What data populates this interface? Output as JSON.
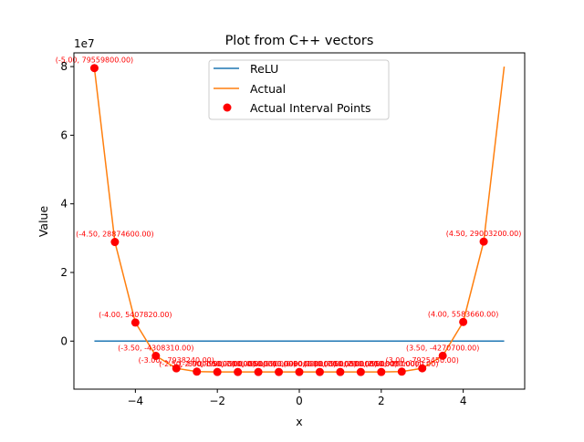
{
  "chart_data": {
    "type": "line",
    "title": "Plot from C++ vectors",
    "xlabel": "x",
    "ylabel": "Value",
    "offset_label": "1e7",
    "xlim": [
      -5.5,
      5.5
    ],
    "ylim": [
      -14000000,
      84000000
    ],
    "x_ticks": [
      -4,
      -2,
      0,
      2,
      4
    ],
    "x_tick_labels": [
      "−4",
      "−2",
      "0",
      "2",
      "4"
    ],
    "y_ticks": [
      0,
      20000000,
      40000000,
      60000000,
      80000000
    ],
    "y_tick_labels": [
      "0",
      "2",
      "4",
      "6",
      "8"
    ],
    "grid": false,
    "legend_position": "upper center",
    "legend": [
      "ReLU",
      "Actual",
      "Actual Interval Points"
    ],
    "colors": {
      "relu": "#1f77b4",
      "actual": "#ff7f0e",
      "points": "#ff0000",
      "annotation": "#ff0000"
    },
    "series": [
      {
        "name": "ReLU",
        "x": [
          -5,
          5
        ],
        "y": [
          0,
          0
        ]
      },
      {
        "name": "Actual",
        "x": [
          -5,
          -4.5,
          -4,
          -3.5,
          -3,
          -2.5,
          -2,
          -1.5,
          -1,
          -0.5,
          0,
          0.5,
          1,
          1.5,
          2,
          2.5,
          3,
          3.5,
          4,
          4.5,
          5
        ],
        "y": [
          79559800,
          28874600,
          5407820,
          -4308310,
          -7938240,
          -8900000,
          -9000000,
          -9000000,
          -9000000,
          -9000000,
          -9000000,
          -9000000,
          -9000000,
          -9000000,
          -9000000,
          -8900000,
          -7925450,
          -4270700,
          5583660,
          29003200,
          80000000
        ]
      },
      {
        "name": "Actual Interval Points",
        "x": [
          -5,
          -4.5,
          -4,
          -3.5,
          -3,
          -2.5,
          -2,
          -1.5,
          -1,
          -0.5,
          0,
          0.5,
          1,
          1.5,
          2,
          2.5,
          3,
          3.5,
          4,
          4.5
        ],
        "y": [
          79559800,
          28874600,
          5407820,
          -4308310,
          -7938240,
          -8900000,
          -9000000,
          -9000000,
          -9000000,
          -9000000,
          -9000000,
          -9000000,
          -9000000,
          -9000000,
          -9000000,
          -8900000,
          -7925450,
          -4270700,
          5583660,
          29003200
        ]
      }
    ],
    "annotations": [
      {
        "x": -5,
        "y": 79559800,
        "text": "(-5.00, 79559800.00)"
      },
      {
        "x": -4.5,
        "y": 28874600,
        "text": "(-4.50, 28874600.00)"
      },
      {
        "x": -4,
        "y": 5407820,
        "text": "(-4.00, 5407820.00)"
      },
      {
        "x": -3.5,
        "y": -4308310,
        "text": "(-3.50, -4308310.00)"
      },
      {
        "x": -3,
        "y": -7938240,
        "text": "(-3.00, -7938240.00)"
      },
      {
        "x": -2.5,
        "y": -8900000,
        "text": "(-2.50, -8900000.00)"
      },
      {
        "x": -2,
        "y": -9000000,
        "text": "(-2.00, -9000000.00)"
      },
      {
        "x": -1.5,
        "y": -9000000,
        "text": "(-1.50, -9000000.00)"
      },
      {
        "x": -1,
        "y": -9000000,
        "text": "(-1.00, -9000000.00)"
      },
      {
        "x": -0.5,
        "y": -9000000,
        "text": "(-0.50, -9000000.00)"
      },
      {
        "x": 0,
        "y": -9000000,
        "text": "(0.00, -9000000.00)"
      },
      {
        "x": 0.5,
        "y": -9000000,
        "text": "(0.50, -9000000.00)"
      },
      {
        "x": 1,
        "y": -9000000,
        "text": "(1.00, -9000000.00)"
      },
      {
        "x": 1.5,
        "y": -9000000,
        "text": "(1.50, -9000000.00)"
      },
      {
        "x": 2,
        "y": -9000000,
        "text": "(2.00, -9000000.00)"
      },
      {
        "x": 2.5,
        "y": -8900000,
        "text": "(2.50, -8900000.00)"
      },
      {
        "x": 3,
        "y": -7925450,
        "text": "(3.00, -7925450.00)"
      },
      {
        "x": 3.5,
        "y": -4270700,
        "text": "(3.50, -4270700.00)"
      },
      {
        "x": 4,
        "y": 5583660,
        "text": "(4.00, 5583660.00)"
      },
      {
        "x": 4.5,
        "y": 29003200,
        "text": "(4.50, 29003200.00)"
      }
    ]
  }
}
